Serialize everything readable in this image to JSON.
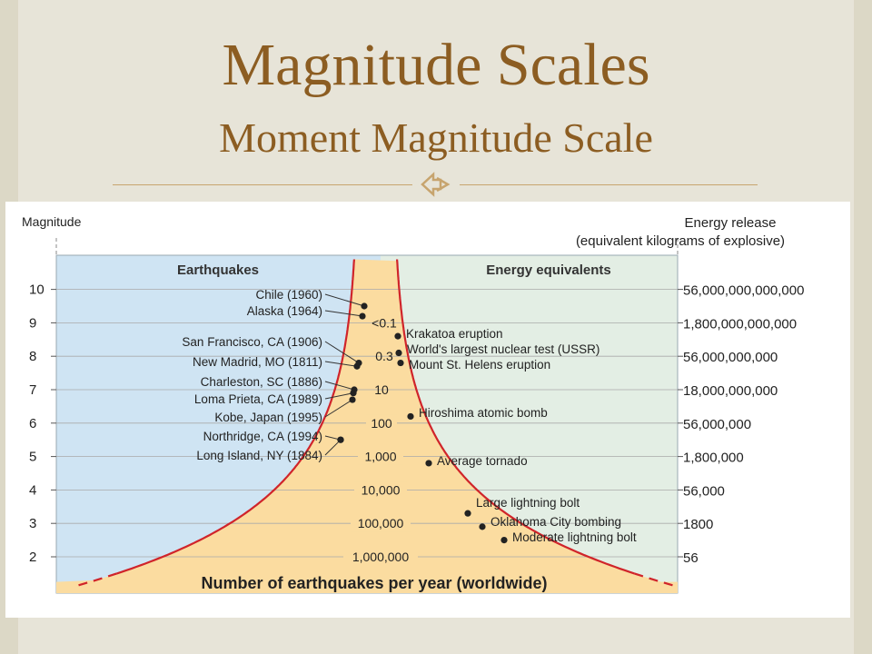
{
  "slide": {
    "title": "Magnitude Scales",
    "subtitle": "Moment Magnitude Scale",
    "bullet_icon": "ornamental-bullet-icon",
    "colors": {
      "title": "#8c5d22",
      "background": "#e7e4d8"
    }
  },
  "chart_data": {
    "type": "line",
    "left_axis_label": "Magnitude",
    "right_axis_label_line1": "Energy release",
    "right_axis_label_line2": "(equivalent kilograms of explosive)",
    "left_panel_title": "Earthquakes",
    "right_panel_title": "Energy equivalents",
    "bottom_caption": "Number of earthquakes per year (worldwide)",
    "magnitude_ticks": [
      {
        "value": 10,
        "label": "10"
      },
      {
        "value": 9,
        "label": "9"
      },
      {
        "value": 8,
        "label": "8"
      },
      {
        "value": 7,
        "label": "7"
      },
      {
        "value": 6,
        "label": "6"
      },
      {
        "value": 5,
        "label": "5"
      },
      {
        "value": 4,
        "label": "4"
      },
      {
        "value": 3,
        "label": "3"
      },
      {
        "value": 2,
        "label": "2"
      }
    ],
    "energy_ticks": [
      {
        "magnitude": 10,
        "label": "56,000,000,000,000"
      },
      {
        "magnitude": 9,
        "label": "1,800,000,000,000"
      },
      {
        "magnitude": 8,
        "label": "56,000,000,000"
      },
      {
        "magnitude": 7,
        "label": "18,000,000,000"
      },
      {
        "magnitude": 6,
        "label": "56,000,000"
      },
      {
        "magnitude": 5,
        "label": "1,800,000"
      },
      {
        "magnitude": 4,
        "label": "56,000"
      },
      {
        "magnitude": 3,
        "label": "1800"
      },
      {
        "magnitude": 2,
        "label": "56"
      }
    ],
    "frequency_labels": [
      {
        "magnitude": 9,
        "label": "<0.1"
      },
      {
        "magnitude": 8,
        "label": "0.3"
      },
      {
        "magnitude": 7,
        "label": "10"
      },
      {
        "magnitude": 6,
        "label": "100"
      },
      {
        "magnitude": 5,
        "label": "1,000"
      },
      {
        "magnitude": 4,
        "label": "10,000"
      },
      {
        "magnitude": 3,
        "label": "100,000"
      },
      {
        "magnitude": 2,
        "label": "1,000,000"
      }
    ],
    "earthquakes": [
      {
        "name": "Chile (1960)",
        "magnitude": 9.5
      },
      {
        "name": "Alaska (1964)",
        "magnitude": 9.2
      },
      {
        "name": "San Francisco, CA (1906)",
        "magnitude": 7.8
      },
      {
        "name": "New Madrid, MO (1811)",
        "magnitude": 7.7
      },
      {
        "name": "Charleston, SC (1886)",
        "magnitude": 7.0
      },
      {
        "name": "Loma Prieta, CA (1989)",
        "magnitude": 6.9
      },
      {
        "name": "Kobe, Japan (1995)",
        "magnitude": 6.7
      },
      {
        "name": "Northridge, CA (1994)",
        "magnitude": 5.5
      },
      {
        "name": "Long Island, NY (1884)",
        "magnitude": 5.5
      }
    ],
    "energy_equivalents": [
      {
        "name": "Krakatoa eruption",
        "magnitude": 8.6
      },
      {
        "name": "World's largest nuclear test (USSR)",
        "magnitude": 8.1
      },
      {
        "name": "Mount St. Helens eruption",
        "magnitude": 7.8
      },
      {
        "name": "Hiroshima atomic bomb",
        "magnitude": 6.2
      },
      {
        "name": "Average tornado",
        "magnitude": 4.8
      },
      {
        "name": "Large lightning bolt",
        "magnitude": 3.3
      },
      {
        "name": "Oklahoma City bombing",
        "magnitude": 2.9
      },
      {
        "name": "Moderate lightning bolt",
        "magnitude": 2.5
      }
    ],
    "ylim": [
      1,
      10.9
    ],
    "colors": {
      "earthquake_panel": "#cfe4f3",
      "energy_panel": "#e3eee4",
      "funnel": "#fbdca0",
      "curve": "#d0242a",
      "dot": "#222222",
      "grid": "#aaaaaa"
    }
  }
}
